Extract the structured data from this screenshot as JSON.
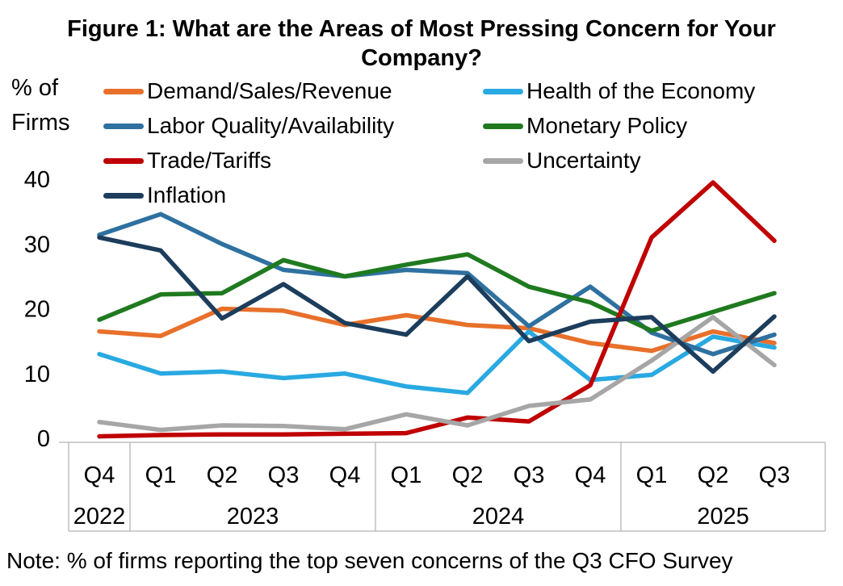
{
  "title": "Figure 1: What are the Areas of Most Pressing Concern for Your Company?",
  "y_axis": {
    "label_line1": "% of",
    "label_line2": "Firms",
    "ticks": [
      0,
      10,
      20,
      30,
      40
    ]
  },
  "note": "Note: % of firms reporting the top seven concerns of the Q3 CFO Survey",
  "chart_data": {
    "type": "line",
    "categories": [
      "Q4 2022",
      "Q1 2023",
      "Q2 2023",
      "Q3 2023",
      "Q4 2023",
      "Q1 2024",
      "Q2 2024",
      "Q3 2024",
      "Q4 2024",
      "Q1 2025",
      "Q2 2025",
      "Q3 2025"
    ],
    "x_groups": [
      {
        "year": "2022",
        "quarters": [
          "Q4"
        ]
      },
      {
        "year": "2023",
        "quarters": [
          "Q1",
          "Q2",
          "Q3",
          "Q4"
        ]
      },
      {
        "year": "2024",
        "quarters": [
          "Q1",
          "Q2",
          "Q3",
          "Q4"
        ]
      },
      {
        "year": "2025",
        "quarters": [
          "Q1",
          "Q2",
          "Q3"
        ]
      }
    ],
    "series": [
      {
        "name": "Demand/Sales/Revenue",
        "color": "#E8702B",
        "values": [
          16.5,
          15.8,
          20.0,
          19.7,
          17.5,
          19.0,
          17.5,
          17.0,
          14.7,
          13.5,
          16.5,
          14.7
        ]
      },
      {
        "name": "Health of the Economy",
        "color": "#29A9E1",
        "values": [
          13.0,
          10.0,
          10.3,
          9.3,
          10.0,
          8.0,
          7.0,
          16.5,
          9.0,
          9.8,
          15.7,
          14.0
        ]
      },
      {
        "name": "Labor Quality/Availability",
        "color": "#2E71A0",
        "values": [
          31.4,
          34.6,
          30.0,
          26.0,
          25.0,
          26.0,
          25.5,
          17.3,
          23.4,
          16.3,
          13.0,
          16.0
        ]
      },
      {
        "name": "Monetary Policy",
        "color": "#1F7A1F",
        "values": [
          18.3,
          22.2,
          22.4,
          27.5,
          25.0,
          26.8,
          28.4,
          23.4,
          21.0,
          16.6,
          19.5,
          22.4
        ]
      },
      {
        "name": "Trade/Tariffs",
        "color": "#C00000",
        "values": [
          0.3,
          0.5,
          0.6,
          0.6,
          0.7,
          0.8,
          3.2,
          2.6,
          8.2,
          31.0,
          39.5,
          30.5
        ]
      },
      {
        "name": "Uncertainty",
        "color": "#A6A6A6",
        "values": [
          2.5,
          1.3,
          2.0,
          1.9,
          1.4,
          3.7,
          2.0,
          5.0,
          6.0,
          12.0,
          18.7,
          11.3
        ]
      },
      {
        "name": "Inflation",
        "color": "#1C3D5C",
        "values": [
          31.0,
          29.0,
          18.5,
          23.8,
          17.8,
          16.0,
          25.0,
          15.0,
          18.0,
          18.7,
          10.3,
          18.8
        ]
      }
    ],
    "ylim": [
      0,
      40
    ],
    "grid": false,
    "legend_position": "top-left-two-columns",
    "axis_line_color": "#BFBFBF"
  }
}
